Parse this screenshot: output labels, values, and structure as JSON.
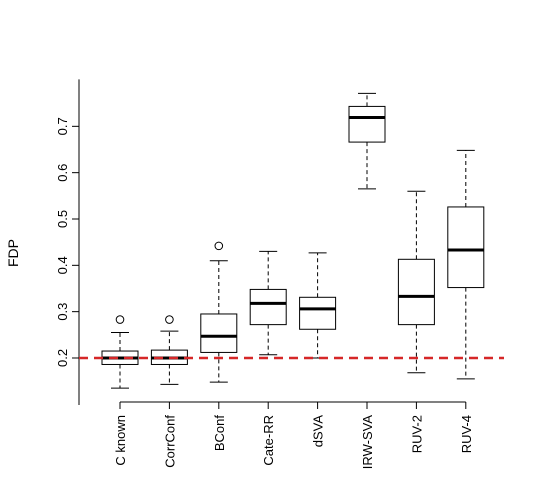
{
  "chart_data": {
    "type": "box",
    "title": "",
    "xlabel": "",
    "ylabel": "FDP",
    "ylim": [
      0.105,
      0.8
    ],
    "yticks": [
      0.2,
      0.3,
      0.4,
      0.5,
      0.6,
      0.7
    ],
    "ytick_labels": [
      "0.2",
      "0.3",
      "0.4",
      "0.5",
      "0.6",
      "0.7"
    ],
    "reference_line": {
      "y": 0.2,
      "color": "#d62728",
      "style": "dashed"
    },
    "categories": [
      "C known",
      "CorrConf",
      "BConf",
      "Cate-RR",
      "dSVA",
      "IRW-SVA",
      "RUV-2",
      "RUV-4"
    ],
    "boxes": [
      {
        "name": "C known",
        "whisker_low": 0.135,
        "q1": 0.186,
        "median": 0.2,
        "q3": 0.215,
        "whisker_high": 0.255,
        "outliers": [
          0.283
        ]
      },
      {
        "name": "CorrConf",
        "whisker_low": 0.143,
        "q1": 0.186,
        "median": 0.2,
        "q3": 0.217,
        "whisker_high": 0.258,
        "outliers": [
          0.283
        ]
      },
      {
        "name": "BConf",
        "whisker_low": 0.148,
        "q1": 0.212,
        "median": 0.247,
        "q3": 0.295,
        "whisker_high": 0.41,
        "outliers": [
          0.442
        ]
      },
      {
        "name": "Cate-RR",
        "whisker_low": 0.207,
        "q1": 0.272,
        "median": 0.318,
        "q3": 0.348,
        "whisker_high": 0.43,
        "outliers": []
      },
      {
        "name": "dSVA",
        "whisker_low": 0.2,
        "q1": 0.262,
        "median": 0.306,
        "q3": 0.331,
        "whisker_high": 0.427,
        "outliers": []
      },
      {
        "name": "IRW-SVA",
        "whisker_low": 0.565,
        "q1": 0.666,
        "median": 0.719,
        "q3": 0.743,
        "whisker_high": 0.771,
        "outliers": []
      },
      {
        "name": "RUV-2",
        "whisker_low": 0.168,
        "q1": 0.272,
        "median": 0.333,
        "q3": 0.413,
        "whisker_high": 0.56,
        "outliers": []
      },
      {
        "name": "RUV-4",
        "whisker_low": 0.155,
        "q1": 0.352,
        "median": 0.433,
        "q3": 0.526,
        "whisker_high": 0.648,
        "outliers": []
      }
    ]
  }
}
